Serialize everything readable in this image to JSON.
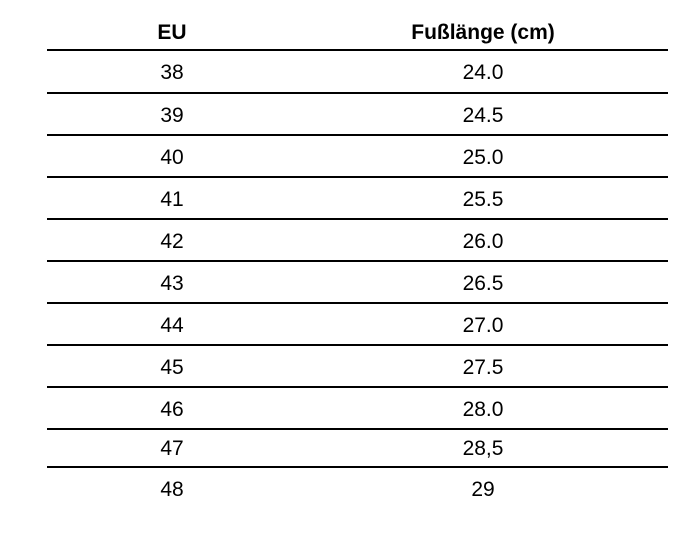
{
  "table": {
    "header": [
      "EU",
      "Fußlänge (cm)"
    ],
    "rows": [
      [
        "38",
        "24.0"
      ],
      [
        "39",
        "24.5"
      ],
      [
        "40",
        "25.0"
      ],
      [
        "41",
        "25.5"
      ],
      [
        "42",
        "26.0"
      ],
      [
        "43",
        "26.5"
      ],
      [
        "44",
        "27.0"
      ],
      [
        "45",
        "27.5"
      ],
      [
        "46",
        "28.0"
      ],
      [
        "47",
        "28,5"
      ],
      [
        "48",
        "29"
      ]
    ]
  }
}
